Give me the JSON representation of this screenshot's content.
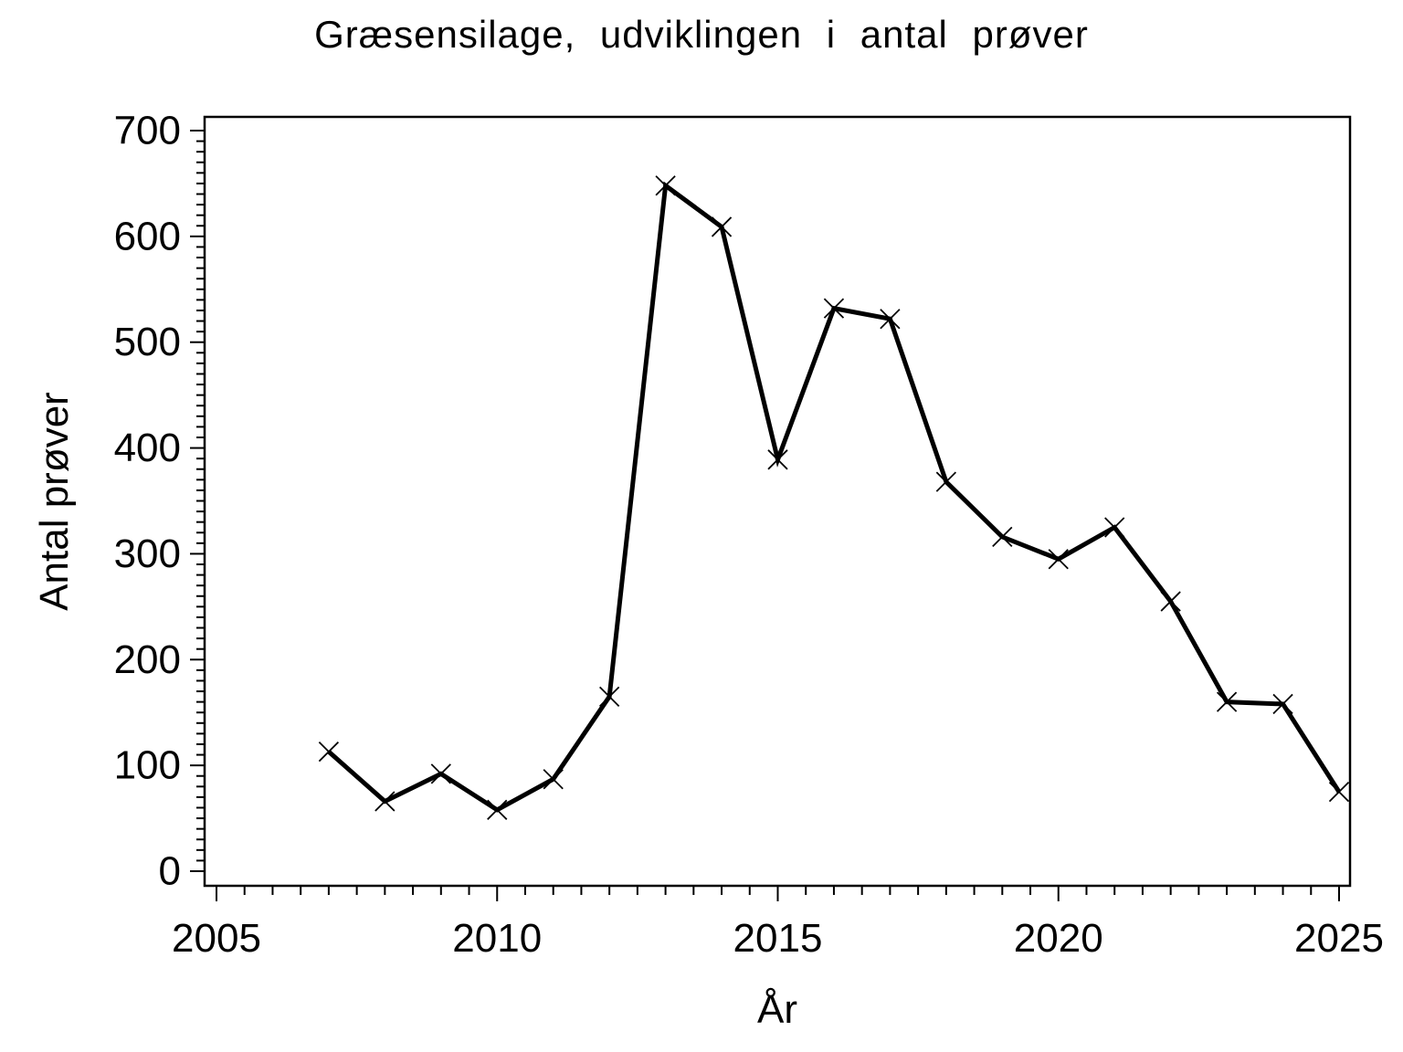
{
  "page": {
    "background_color": "#ffffff",
    "foreground_color": "#000000"
  },
  "chart_data": {
    "type": "line",
    "title": "Græsensilage, udviklingen i antal prøver",
    "xlabel": "År",
    "ylabel": "Antal prøver",
    "series": [
      {
        "name": "Antal prøver",
        "x": [
          2007,
          2008,
          2009,
          2010,
          2011,
          2012,
          2013,
          2014,
          2015,
          2016,
          2017,
          2018,
          2019,
          2020,
          2021,
          2022,
          2023,
          2024,
          2025
        ],
        "values": [
          113,
          66,
          92,
          58,
          87,
          165,
          648,
          609,
          389,
          532,
          522,
          368,
          316,
          295,
          325,
          255,
          160,
          158,
          75
        ]
      }
    ],
    "xlim": [
      2005,
      2025
    ],
    "ylim": [
      0,
      700
    ],
    "xticks_major": [
      2005,
      2010,
      2015,
      2020,
      2025
    ],
    "yticks_major": [
      0,
      100,
      200,
      300,
      400,
      500,
      600,
      700
    ],
    "x_minor_step": 0.5,
    "y_minor_step": 10,
    "marker": "x",
    "line_color": "#000000",
    "marker_color": "#000000",
    "grid": false,
    "legend": "none"
  }
}
